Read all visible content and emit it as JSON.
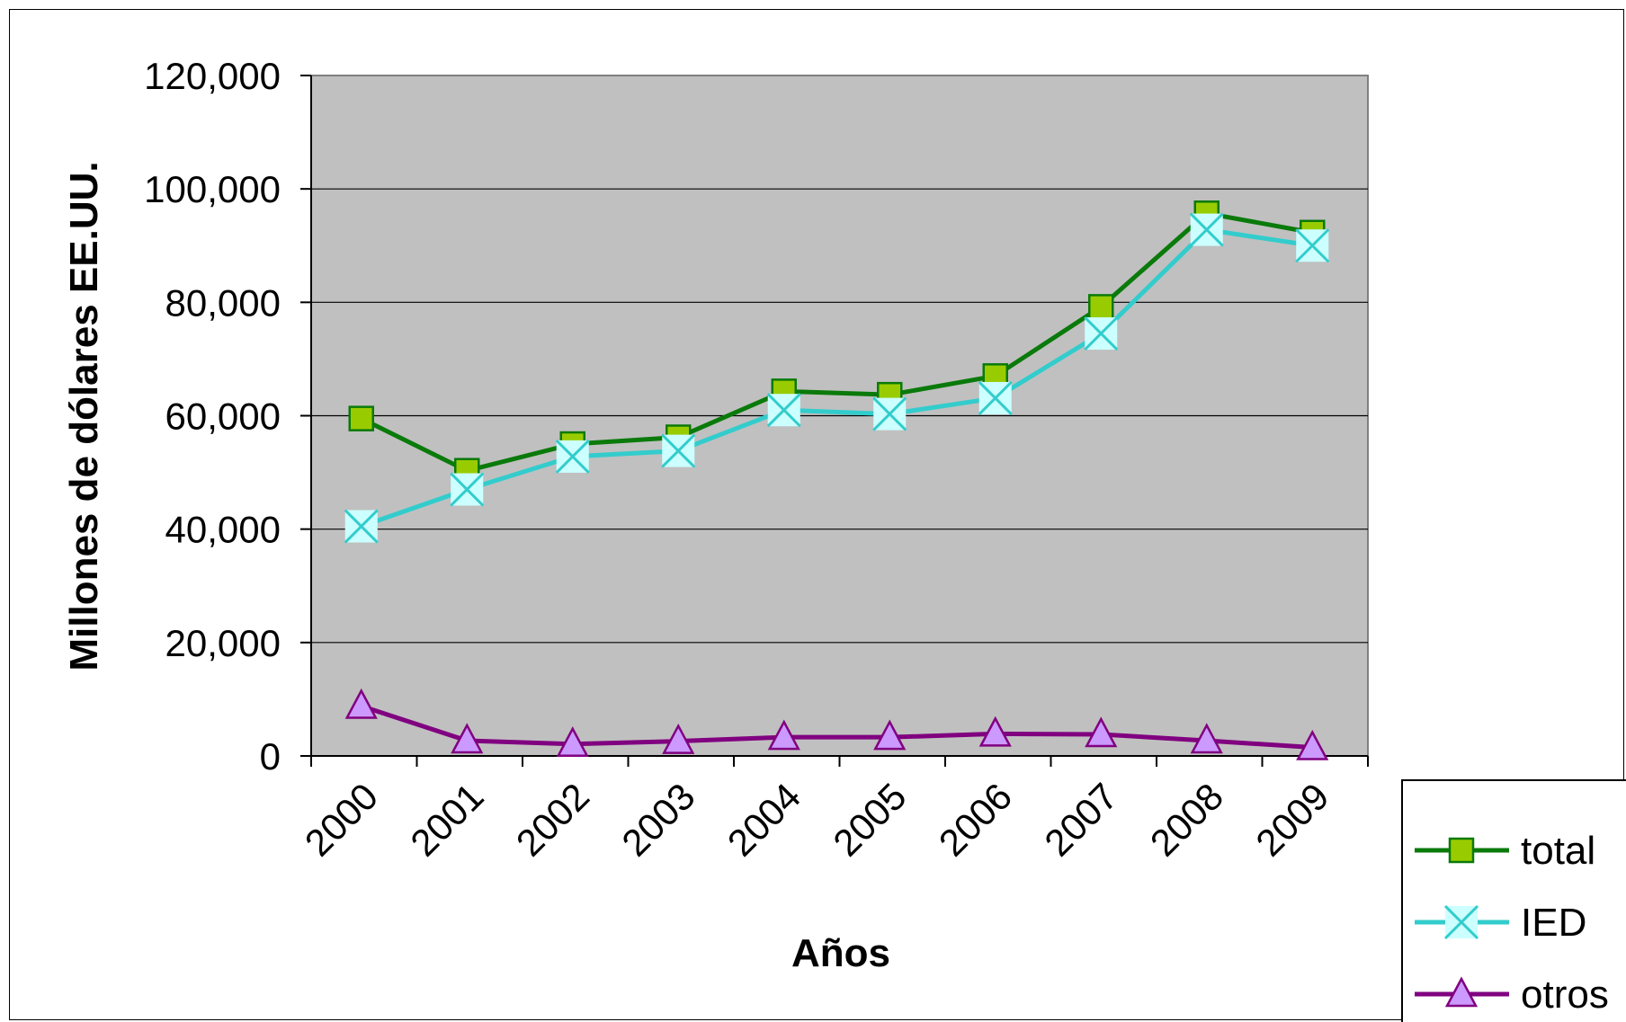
{
  "chart_data": {
    "type": "line",
    "categories": [
      "2000",
      "2001",
      "2002",
      "2003",
      "2004",
      "2005",
      "2006",
      "2007",
      "2008",
      "2009"
    ],
    "ylabel": "Millones de dólares EE.UU.",
    "xlabel": "Años",
    "ylim": [
      0,
      120000
    ],
    "yticks": [
      0,
      20000,
      40000,
      60000,
      80000,
      100000,
      120000
    ],
    "ytick_labels": [
      "0",
      "20,000",
      "40,000",
      "60,000",
      "80,000",
      "100,000",
      "120,000"
    ],
    "grid": true,
    "legend_position": "bottom-right",
    "plot_background": "#c0c0c0",
    "series": [
      {
        "name": "total",
        "marker": "square",
        "color": "#0a7a0a",
        "marker_fill": "#99cc00",
        "values": [
          59500,
          50300,
          55000,
          56200,
          64300,
          63700,
          67000,
          79200,
          95700,
          92300
        ]
      },
      {
        "name": "IED",
        "marker": "x",
        "color": "#33cccc",
        "marker_fill": "#ccffff",
        "values": [
          40500,
          47000,
          52800,
          53800,
          61000,
          60300,
          63100,
          74500,
          92800,
          90000
        ]
      },
      {
        "name": "otros",
        "marker": "triangle",
        "color": "#800080",
        "marker_fill": "#cc99ff",
        "values": [
          8800,
          2700,
          2100,
          2600,
          3300,
          3300,
          3900,
          3800,
          2700,
          1500
        ]
      }
    ]
  }
}
